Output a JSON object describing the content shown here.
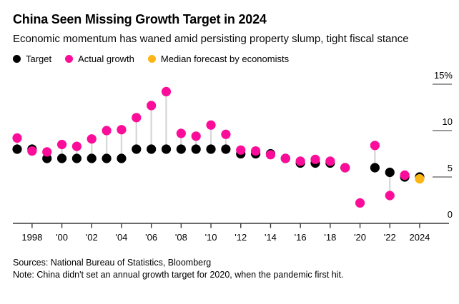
{
  "header": {
    "title": "China Seen Missing Growth Target in 2024",
    "subtitle": "Economic momentum has waned amid persisting property slump, tight fiscal stance"
  },
  "legend": {
    "items": [
      {
        "label": "Target",
        "color": "#000000"
      },
      {
        "label": "Actual growth",
        "color": "#fb0d9a"
      },
      {
        "label": "Median forecast by economists",
        "color": "#fdb515"
      }
    ]
  },
  "footer": {
    "sources": "Sources: National Bureau of Statistics, Bloomberg",
    "note": "Note: China didn't set an annual growth target for 2020, when the pandemic first hit."
  },
  "chart_data": {
    "type": "scatter",
    "title": "China Seen Missing Growth Target in 2024",
    "subtitle": "Economic momentum has waned amid persisting property slump, tight fiscal stance",
    "x_unit": "year",
    "x": [
      1997,
      1998,
      1999,
      2000,
      2001,
      2002,
      2003,
      2004,
      2005,
      2006,
      2007,
      2008,
      2009,
      2010,
      2011,
      2012,
      2013,
      2014,
      2015,
      2016,
      2017,
      2018,
      2019,
      2020,
      2021,
      2022,
      2023,
      2024
    ],
    "series": [
      {
        "name": "Target",
        "key": "target",
        "color": "#000000",
        "values": [
          8,
          8,
          7,
          7,
          7,
          7,
          7,
          7,
          8,
          8,
          8,
          8,
          8,
          8,
          8,
          7.5,
          7.5,
          7.5,
          7,
          6.5,
          6.5,
          6.5,
          6,
          null,
          6,
          5.5,
          5,
          5
        ]
      },
      {
        "name": "Actual growth",
        "key": "actual",
        "color": "#fb0d9a",
        "values": [
          9.2,
          7.8,
          7.7,
          8.5,
          8.3,
          9.1,
          10,
          10.1,
          11.4,
          12.7,
          14.2,
          9.7,
          9.4,
          10.6,
          9.6,
          7.9,
          7.8,
          7.4,
          7,
          6.7,
          6.9,
          6.7,
          6,
          2.2,
          8.4,
          3,
          5.2,
          null
        ]
      },
      {
        "name": "Median forecast by economists",
        "key": "forecast",
        "color": "#fdb515",
        "values": [
          null,
          null,
          null,
          null,
          null,
          null,
          null,
          null,
          null,
          null,
          null,
          null,
          null,
          null,
          null,
          null,
          null,
          null,
          null,
          null,
          null,
          null,
          null,
          null,
          null,
          null,
          null,
          4.8
        ]
      }
    ],
    "ylim": [
      0,
      15
    ],
    "yticks": [
      {
        "value": 0,
        "label": "0"
      },
      {
        "value": 5,
        "label": "5"
      },
      {
        "value": 10,
        "label": "10"
      },
      {
        "value": 15,
        "label": "15%"
      }
    ],
    "xticks": [
      {
        "value": 1998,
        "label": "1998"
      },
      {
        "value": 2000,
        "label": "'00"
      },
      {
        "value": 2002,
        "label": "'02"
      },
      {
        "value": 2004,
        "label": "'04"
      },
      {
        "value": 2006,
        "label": "'06"
      },
      {
        "value": 2008,
        "label": "'08"
      },
      {
        "value": 2010,
        "label": "'10"
      },
      {
        "value": 2012,
        "label": "'12"
      },
      {
        "value": 2014,
        "label": "'14"
      },
      {
        "value": 2016,
        "label": "'16"
      },
      {
        "value": 2018,
        "label": "'18"
      },
      {
        "value": 2020,
        "label": "'20"
      },
      {
        "value": 2022,
        "label": "'22"
      },
      {
        "value": 2024,
        "label": "2024"
      }
    ],
    "grid": "off",
    "legend_position": "top",
    "connector_color": "#d9d9d9",
    "axis_color": "#383838",
    "ytick_color": "#999999"
  }
}
